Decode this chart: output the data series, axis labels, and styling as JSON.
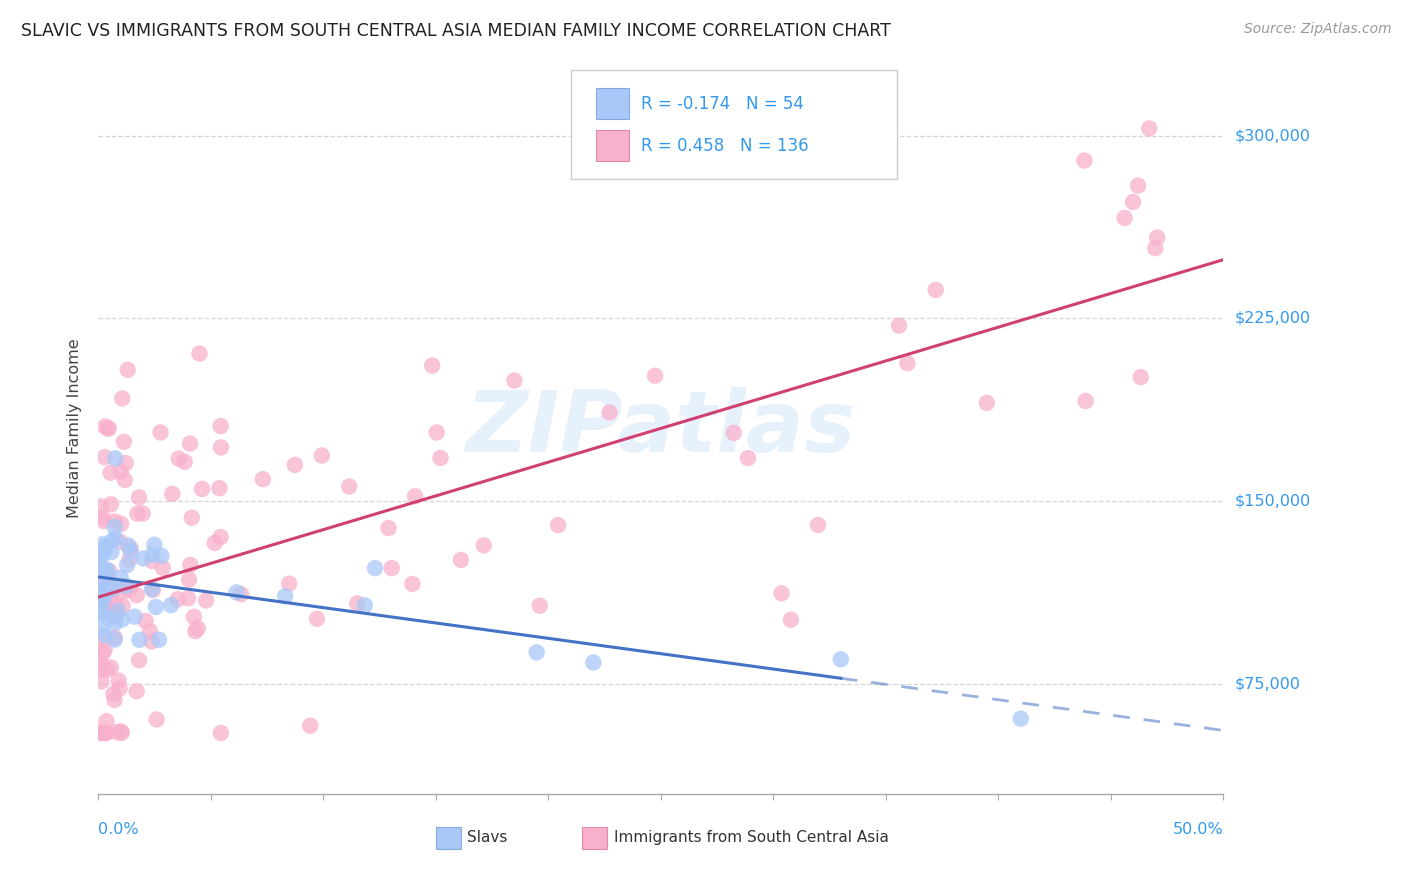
{
  "title": "SLAVIC VS IMMIGRANTS FROM SOUTH CENTRAL ASIA MEDIAN FAMILY INCOME CORRELATION CHART",
  "source": "Source: ZipAtlas.com",
  "ylabel": "Median Family Income",
  "yticks": [
    75000,
    150000,
    225000,
    300000
  ],
  "ytick_labels": [
    "$75,000",
    "$150,000",
    "$225,000",
    "$300,000"
  ],
  "legend_label1": "Slavs",
  "legend_label2": "Immigrants from South Central Asia",
  "R1": -0.174,
  "N1": 54,
  "R2": 0.458,
  "N2": 136,
  "color_slavs": "#a8c8f8",
  "color_immigrants": "#f8b0cc",
  "color_slavs_line": "#4472c4",
  "color_immigrants_line": "#d04070",
  "background_color": "#ffffff",
  "grid_color": "#cccccc",
  "watermark": "ZIPatlas",
  "xlim": [
    0.0,
    0.5
  ],
  "ylim": [
    30000,
    330000
  ],
  "tick_label_color": "#3399ee",
  "legend_text_color": "#3399ee",
  "axis_label_color": "#444444"
}
